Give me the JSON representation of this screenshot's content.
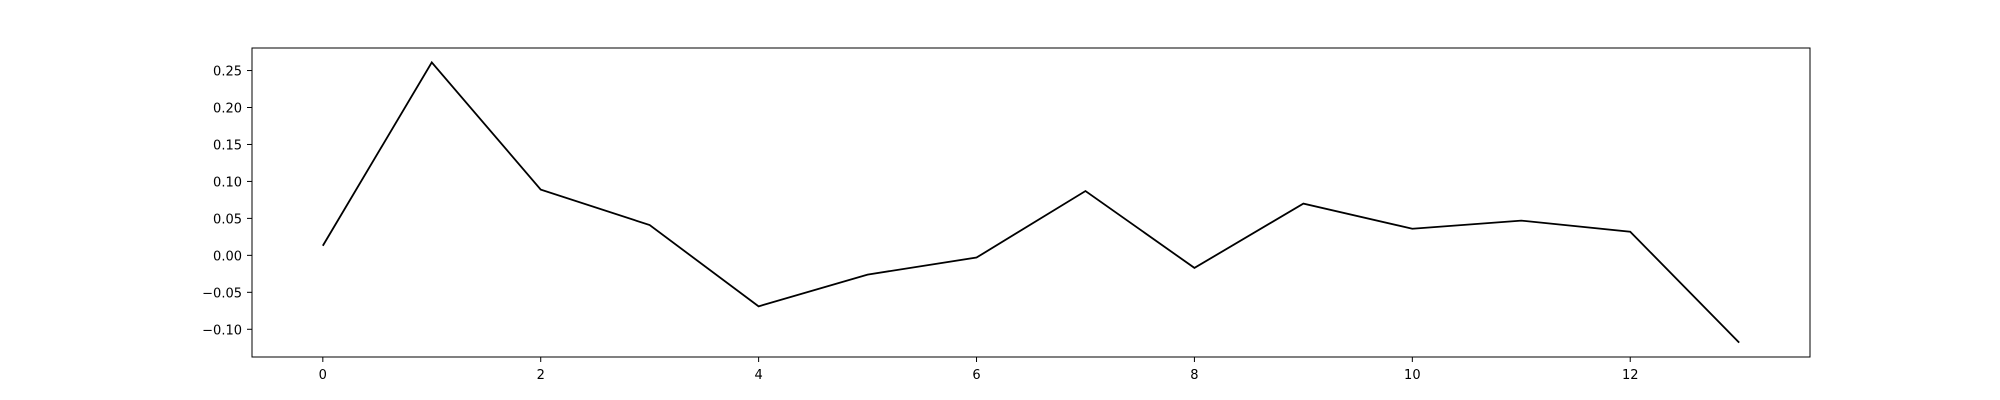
{
  "chart_data": {
    "type": "line",
    "title": "",
    "xlabel": "",
    "ylabel": "",
    "x": [
      0,
      1,
      2,
      3,
      4,
      5,
      6,
      7,
      8,
      9,
      10,
      11,
      12,
      13
    ],
    "series": [
      {
        "values": [
          0.013,
          0.261,
          0.089,
          0.041,
          -0.069,
          -0.026,
          -0.003,
          0.087,
          -0.017,
          0.07,
          0.036,
          0.047,
          0.032,
          -0.118
        ],
        "color": "#000000"
      }
    ],
    "xlim": [
      -0.65,
      13.65
    ],
    "ylim": [
      -0.1375,
      0.2805
    ],
    "x_ticks": [
      "0",
      "2",
      "4",
      "6",
      "8",
      "10",
      "12"
    ],
    "y_ticks": [
      "−0.10",
      "−0.05",
      "0.00",
      "0.05",
      "0.10",
      "0.15",
      "0.20",
      "0.25"
    ],
    "grid": false,
    "legend": "none"
  }
}
